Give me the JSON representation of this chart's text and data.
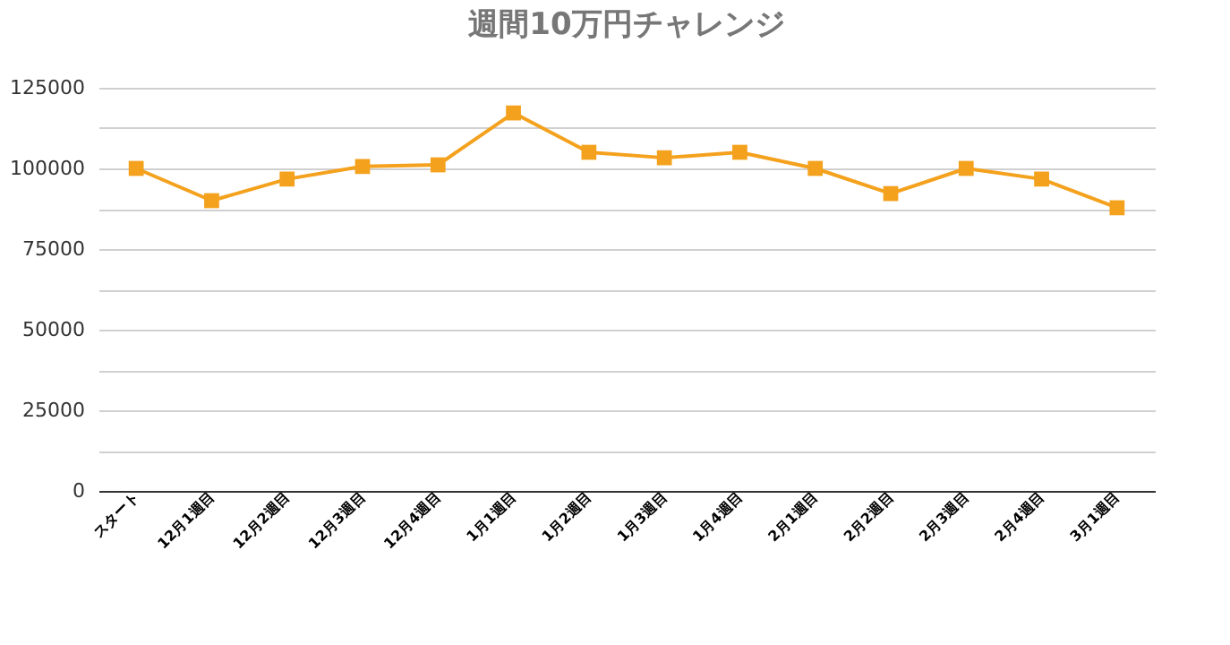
{
  "chart_data": {
    "type": "line",
    "title": "週間10万円チャレンジ",
    "categories": [
      "スタート",
      "12月1週目",
      "12月2週目",
      "12月3週目",
      "12月4週目",
      "1月1週目",
      "1月2週目",
      "1月3週目",
      "1月4週目",
      "2月1週目",
      "2月2週目",
      "2月3週目",
      "2月4週目",
      "3月1週目"
    ],
    "series": [
      {
        "color": "#f4a11d",
        "values": [
          100000,
          90000,
          96700,
          100600,
          101100,
          117200,
          105000,
          103300,
          105000,
          100000,
          92200,
          100000,
          96700,
          87800
        ]
      }
    ],
    "ylim": [
      0,
      125000
    ],
    "yticks": [
      0,
      {
        "value": 12500,
        "label": null
      },
      25000,
      {
        "value": 37500,
        "label": null
      },
      50000,
      {
        "value": 62500,
        "label": null
      },
      75000,
      {
        "value": 87500,
        "label": null
      },
      100000,
      {
        "value": 112500,
        "label": null
      },
      125000
    ],
    "grid": true,
    "marker": "square",
    "line_style": "solid"
  }
}
